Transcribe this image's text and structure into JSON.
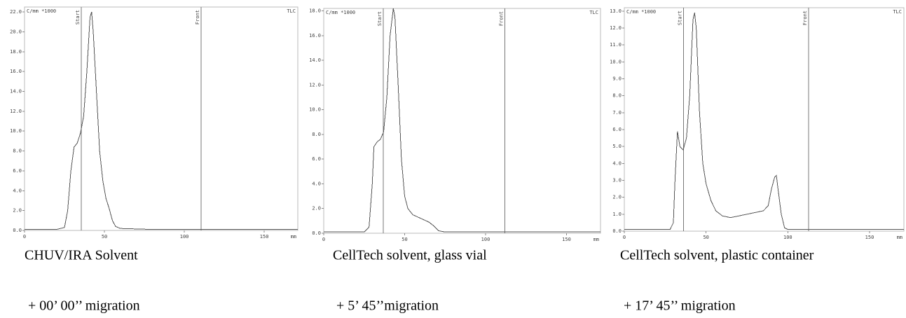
{
  "chart_data": [
    {
      "type": "line",
      "corner_label": "TLC",
      "unit_label": "C/mm *1000",
      "xlabel": "mm",
      "caption": "CHUV/IRA Solvent",
      "note": "+ 00’ 00’’ migration",
      "x": [
        0,
        20,
        25,
        27,
        29,
        31,
        33,
        35,
        37,
        39,
        41,
        42,
        43,
        45,
        47,
        49,
        51,
        53,
        55,
        57,
        60,
        80,
        171
      ],
      "values": [
        0.1,
        0.1,
        0.3,
        2,
        6,
        8.4,
        8.8,
        9.8,
        11.5,
        16,
        21.5,
        22,
        20,
        14,
        8,
        5,
        3.2,
        2.2,
        1,
        0.4,
        0.2,
        0.1,
        0.1
      ],
      "color": "#555555",
      "markers": [
        {
          "label": "Start",
          "x": 35.5
        },
        {
          "label": "Front",
          "x": 110.5
        }
      ],
      "xlim": [
        0,
        171
      ],
      "xticks": [
        0,
        50,
        100,
        150
      ],
      "ylim": [
        0,
        22.5
      ],
      "yticks": [
        {
          "value": 0,
          "label": "0.0"
        },
        {
          "value": 2,
          "label": "2.0"
        },
        {
          "value": 4,
          "label": "4.0"
        },
        {
          "value": 6,
          "label": "6.0"
        },
        {
          "value": 8,
          "label": "8.0"
        },
        {
          "value": 10,
          "label": "10.0"
        },
        {
          "value": 12,
          "label": "12.0"
        },
        {
          "value": 14,
          "label": "14.0"
        },
        {
          "value": 16,
          "label": "16.0"
        },
        {
          "value": 18,
          "label": "18.0"
        },
        {
          "value": 20,
          "label": "20.0"
        },
        {
          "value": 22,
          "label": "22.0"
        }
      ]
    },
    {
      "type": "line",
      "corner_label": "TLC",
      "unit_label": "C/mm *1000",
      "xlabel": "mm",
      "caption": "CellTech solvent, glass vial",
      "note": "+ 5’ 45’’migration",
      "x": [
        0,
        25,
        28,
        30,
        31,
        33,
        35,
        37,
        39,
        41,
        43,
        44,
        46,
        48,
        50,
        52,
        55,
        60,
        65,
        68,
        71,
        75,
        171
      ],
      "values": [
        0.1,
        0.1,
        0.5,
        4,
        7,
        7.4,
        7.6,
        8.2,
        11,
        16,
        18.2,
        17.5,
        12,
        6,
        3,
        2,
        1.5,
        1.2,
        0.9,
        0.6,
        0.2,
        0.1,
        0.1
      ],
      "color": "#555555",
      "markers": [
        {
          "label": "Start",
          "x": 36.8
        },
        {
          "label": "Front",
          "x": 111.8
        }
      ],
      "xlim": [
        0,
        171
      ],
      "xticks": [
        0,
        50,
        100,
        150
      ],
      "ylim": [
        0,
        18.2
      ],
      "yticks": [
        {
          "value": 0,
          "label": "0.0"
        },
        {
          "value": 2,
          "label": "2.0"
        },
        {
          "value": 4,
          "label": "4.0"
        },
        {
          "value": 6,
          "label": "6.0"
        },
        {
          "value": 8,
          "label": "8.0"
        },
        {
          "value": 10,
          "label": "10.0"
        },
        {
          "value": 12,
          "label": "12.0"
        },
        {
          "value": 14,
          "label": "14.0"
        },
        {
          "value": 16,
          "label": "16.0"
        },
        {
          "value": 18,
          "label": "18.0"
        }
      ]
    },
    {
      "type": "line",
      "corner_label": "TLC",
      "unit_label": "C/mm *1000",
      "xlabel": "mm",
      "caption": "CellTech solvent, plastic container",
      "note": "+ 17’ 45’’ migration",
      "x": [
        0,
        28,
        30,
        31,
        32.5,
        34,
        36,
        38,
        40,
        42,
        43,
        44,
        46,
        48,
        50,
        53,
        56,
        60,
        65,
        70,
        75,
        80,
        85,
        88,
        90,
        92,
        93,
        94,
        96,
        98,
        100,
        171
      ],
      "values": [
        0.1,
        0.1,
        0.5,
        3,
        5.9,
        5,
        4.8,
        5.5,
        8,
        12.5,
        12.9,
        12,
        7,
        4,
        2.8,
        1.8,
        1.2,
        0.9,
        0.8,
        0.9,
        1,
        1.1,
        1.2,
        1.5,
        2.5,
        3.2,
        3.3,
        2.5,
        1,
        0.2,
        0.1,
        0.1
      ],
      "color": "#555555",
      "markers": [
        {
          "label": "Start",
          "x": 36.3
        },
        {
          "label": "Front",
          "x": 112.7
        }
      ],
      "xlim": [
        0,
        171
      ],
      "xticks": [
        0,
        50,
        100,
        150
      ],
      "ylim": [
        0,
        13.2
      ],
      "yticks": [
        {
          "value": 0,
          "label": "0.0"
        },
        {
          "value": 1,
          "label": "1.0"
        },
        {
          "value": 2,
          "label": "2.0"
        },
        {
          "value": 3,
          "label": "3.0"
        },
        {
          "value": 4,
          "label": "4.0"
        },
        {
          "value": 5,
          "label": "5.0"
        },
        {
          "value": 6,
          "label": "6.0"
        },
        {
          "value": 7,
          "label": "7.0"
        },
        {
          "value": 8,
          "label": "8.0"
        },
        {
          "value": 9,
          "label": "9.0"
        },
        {
          "value": 10,
          "label": "10.0"
        },
        {
          "value": 11,
          "label": "11.0"
        },
        {
          "value": 12,
          "label": "12.0"
        },
        {
          "value": 13,
          "label": "13.0"
        }
      ]
    }
  ]
}
